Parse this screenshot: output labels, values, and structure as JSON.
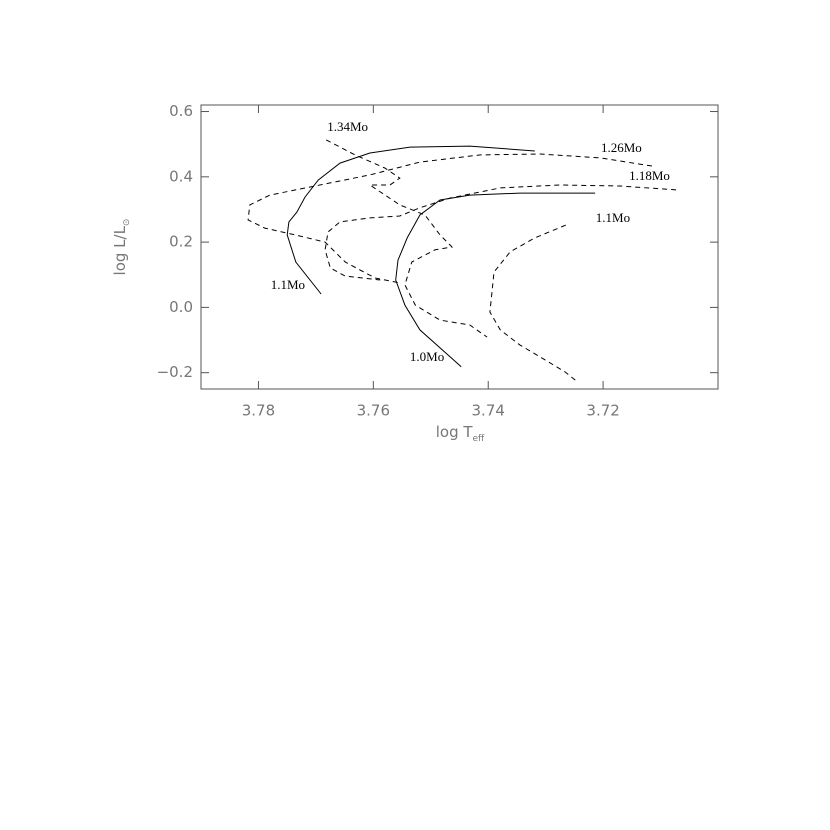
{
  "chart_data": {
    "type": "line",
    "xlabel": {
      "main": "log T",
      "sub": "eff"
    },
    "ylabel": {
      "main": "log L/L",
      "sub": "⊙"
    },
    "xlim": [
      3.79,
      3.7
    ],
    "ylim": [
      -0.25,
      0.62
    ],
    "xticks": [
      3.78,
      3.76,
      3.74,
      3.72
    ],
    "yticks": [
      0.6,
      0.4,
      0.2,
      {
        "value": 0,
        "label": "0.0"
      },
      {
        "value": -0.2,
        "label": "−0.2"
      }
    ],
    "series": [
      {
        "name": "1.1Mo",
        "color": "#000000",
        "style": "solid",
        "x": [
          3.7691,
          3.7735,
          3.775,
          3.7747,
          3.7733,
          3.7719,
          3.7696,
          3.7658,
          3.7606,
          3.7536,
          3.7432,
          3.7319
        ],
        "values": [
          0.041,
          0.139,
          0.222,
          0.262,
          0.292,
          0.338,
          0.39,
          0.442,
          0.473,
          0.491,
          0.494,
          0.479
        ]
      },
      {
        "name": "1.0Mo",
        "color": "#000000",
        "style": "solid",
        "x": [
          3.7447,
          3.7466,
          3.7519,
          3.7545,
          3.7561,
          3.7557,
          3.7541,
          3.7519,
          3.7484,
          3.7432,
          3.7345,
          3.7214
        ],
        "values": [
          -0.182,
          -0.152,
          -0.069,
          0.007,
          0.084,
          0.145,
          0.213,
          0.283,
          0.329,
          0.344,
          0.35,
          0.35
        ]
      },
      {
        "name": "1.34Mo",
        "color": "#000000",
        "style": "dashed",
        "x": [
          3.7682,
          3.7632,
          3.758,
          3.7554,
          3.7571,
          3.7606,
          3.7554,
          3.751,
          3.7484,
          3.7463,
          3.7493,
          3.7533,
          3.7545,
          3.7527,
          3.7484,
          3.7432,
          3.7402
        ],
        "values": [
          0.513,
          0.467,
          0.427,
          0.396,
          0.375,
          0.375,
          0.314,
          0.283,
          0.222,
          0.185,
          0.176,
          0.139,
          0.069,
          0.007,
          -0.039,
          -0.054,
          -0.091
        ]
      },
      {
        "name": "1.26Mo",
        "color": "#000000",
        "style": "dashed",
        "x": [
          3.7115,
          3.7205,
          3.731,
          3.7414,
          3.7519,
          3.7606,
          3.7693,
          3.778,
          3.7815,
          3.7818,
          3.7789,
          3.7736,
          3.7684,
          3.7649,
          3.7597,
          3.7554
        ],
        "values": [
          0.433,
          0.458,
          0.47,
          0.467,
          0.445,
          0.406,
          0.375,
          0.344,
          0.314,
          0.268,
          0.243,
          0.222,
          0.2,
          0.139,
          0.09,
          0.075
        ]
      },
      {
        "name": "1.18Mo",
        "color": "#000000",
        "style": "dashed",
        "x": [
          3.7073,
          3.7171,
          3.7275,
          3.7379,
          3.7466,
          3.7519,
          3.7554,
          3.7606,
          3.7658,
          3.7679,
          3.7684,
          3.7675,
          3.7649,
          3.7588
        ],
        "values": [
          0.36,
          0.372,
          0.375,
          0.366,
          0.335,
          0.305,
          0.28,
          0.274,
          0.262,
          0.231,
          0.176,
          0.121,
          0.096,
          0.084
        ]
      },
      {
        "name": "1.1Mo",
        "color": "#000000",
        "style": "dashed",
        "x": [
          3.7265,
          3.7319,
          3.7362,
          3.739,
          3.7393,
          3.7397,
          3.7379,
          3.7345,
          3.7301,
          3.7266,
          3.7245
        ],
        "values": [
          0.252,
          0.213,
          0.17,
          0.108,
          0.053,
          -0.014,
          -0.069,
          -0.115,
          -0.161,
          -0.198,
          -0.228
        ]
      }
    ]
  }
}
